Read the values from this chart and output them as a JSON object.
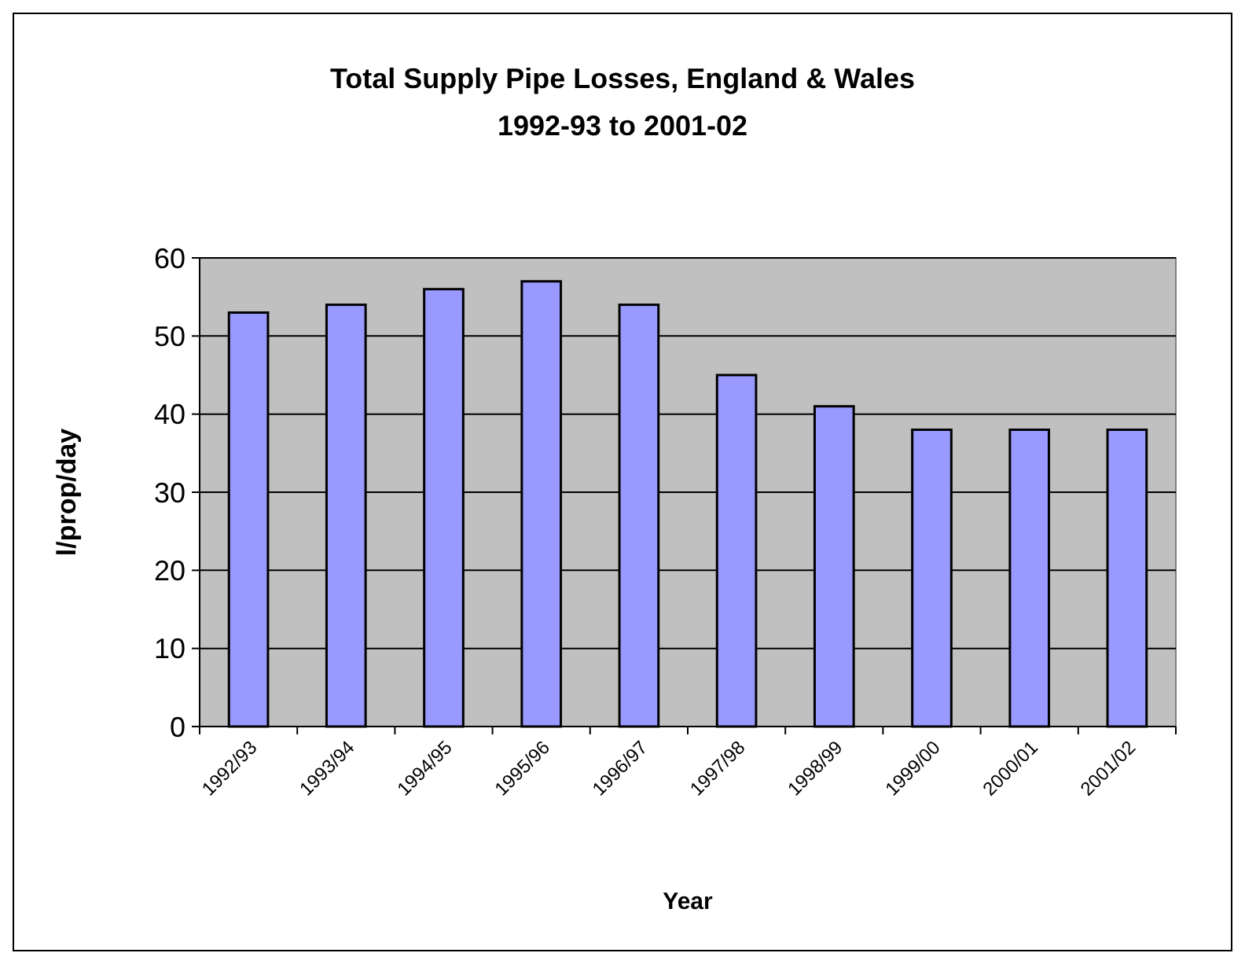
{
  "chart_data": {
    "type": "bar",
    "title": "Total Supply Pipe Losses, England & Wales",
    "subtitle": "1992-93 to 2001-02",
    "xlabel": "Year",
    "ylabel": "l/prop/day",
    "categories": [
      "1992/93",
      "1993/94",
      "1994/95",
      "1995/96",
      "1996/97",
      "1997/98",
      "1998/99",
      "1999/00",
      "2000/01",
      "2001/02"
    ],
    "values": [
      53,
      54,
      56,
      57,
      54,
      45,
      41,
      38,
      38,
      38
    ],
    "color": "#9999ff",
    "ylim": [
      0,
      60
    ],
    "yticks": [
      0,
      10,
      20,
      30,
      40,
      50,
      60
    ],
    "grid": "y"
  }
}
